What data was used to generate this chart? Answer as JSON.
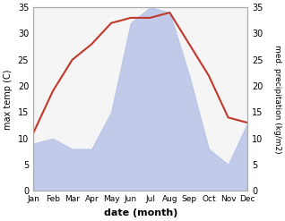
{
  "months": [
    "Jan",
    "Feb",
    "Mar",
    "Apr",
    "May",
    "Jun",
    "Jul",
    "Aug",
    "Sep",
    "Oct",
    "Nov",
    "Dec"
  ],
  "temperature": [
    11,
    19,
    25,
    28,
    32,
    33,
    33,
    34,
    28,
    22,
    14,
    13
  ],
  "precipitation": [
    9,
    10,
    8,
    8,
    15,
    32,
    35,
    34,
    22,
    8,
    5,
    13
  ],
  "temp_color": "#c0392b",
  "precip_fill_color": "#b8c4e8",
  "ylim": [
    0,
    35
  ],
  "xlabel": "date (month)",
  "ylabel_left": "max temp (C)",
  "ylabel_right": "med. precipitation (kg/m2)",
  "bg_color": "#ffffff",
  "plot_bg_color": "#f5f5f5",
  "line_width": 1.5,
  "spine_color": "#aaaaaa",
  "figsize": [
    3.18,
    2.47
  ],
  "dpi": 100
}
